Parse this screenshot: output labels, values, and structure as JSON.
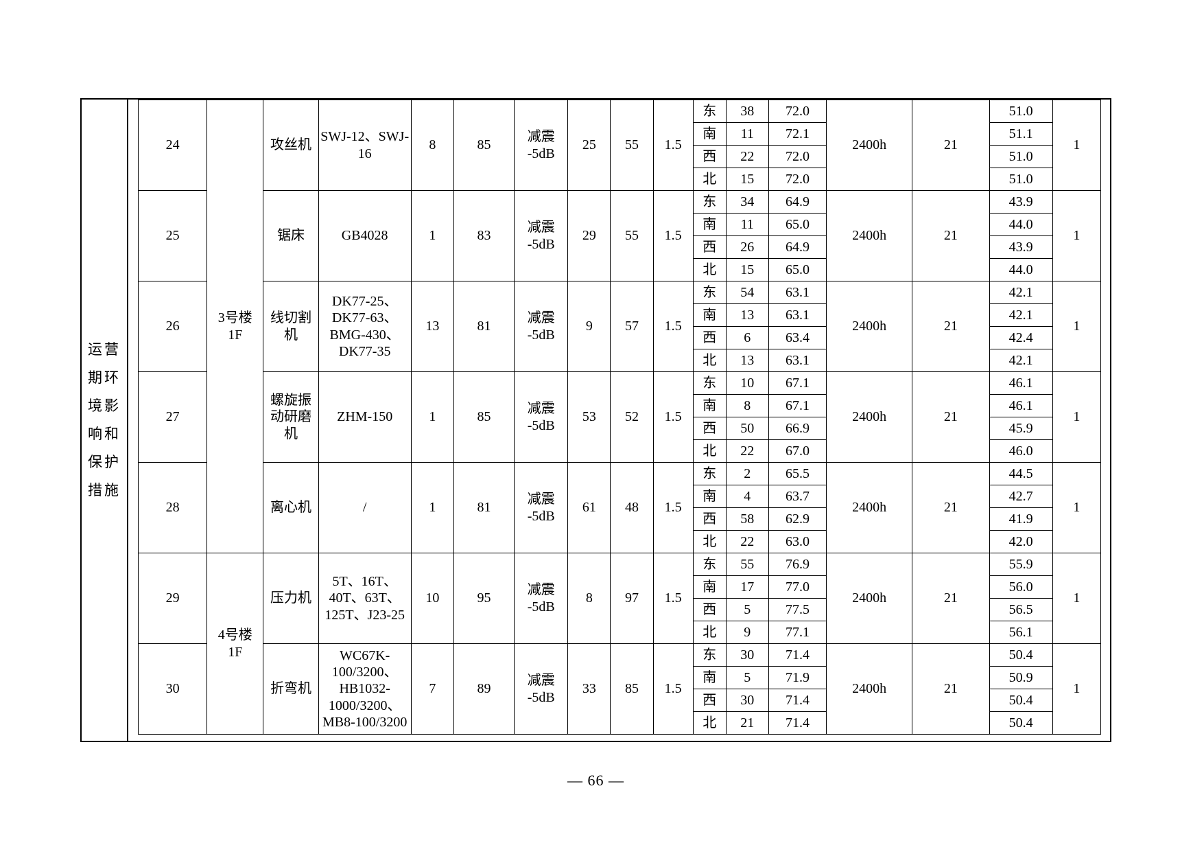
{
  "page": {
    "number_label": "— 66 —"
  },
  "sidebar": {
    "label": "运营期环境影响和保护措施",
    "text": "运营\n期环\n境影\n响和\n保护\n措施"
  },
  "table": {
    "buildings": [
      {
        "label": "3号楼\n1F",
        "row_start": 0,
        "row_count": 5
      },
      {
        "label": "4号楼\n1F",
        "row_start": 5,
        "row_count": 2
      }
    ],
    "rows": [
      {
        "no": "24",
        "machine": "攻丝机",
        "model": "SWJ-12、SWJ-16",
        "qty": "8",
        "source_db": "85",
        "measure": "减震\n-5dB",
        "v1": "25",
        "v2": "55",
        "v3": "1.5",
        "hours": "2400h",
        "standard": "21",
        "count": "1",
        "directions": [
          {
            "dir": "东",
            "dist": "38",
            "contrib": "72.0",
            "boundary": "51.0"
          },
          {
            "dir": "南",
            "dist": "11",
            "contrib": "72.1",
            "boundary": "51.1"
          },
          {
            "dir": "西",
            "dist": "22",
            "contrib": "72.0",
            "boundary": "51.0"
          },
          {
            "dir": "北",
            "dist": "15",
            "contrib": "72.0",
            "boundary": "51.0"
          }
        ]
      },
      {
        "no": "25",
        "machine": "锯床",
        "model": "GB4028",
        "qty": "1",
        "source_db": "83",
        "measure": "减震\n-5dB",
        "v1": "29",
        "v2": "55",
        "v3": "1.5",
        "hours": "2400h",
        "standard": "21",
        "count": "1",
        "directions": [
          {
            "dir": "东",
            "dist": "34",
            "contrib": "64.9",
            "boundary": "43.9"
          },
          {
            "dir": "南",
            "dist": "11",
            "contrib": "65.0",
            "boundary": "44.0"
          },
          {
            "dir": "西",
            "dist": "26",
            "contrib": "64.9",
            "boundary": "43.9"
          },
          {
            "dir": "北",
            "dist": "15",
            "contrib": "65.0",
            "boundary": "44.0"
          }
        ]
      },
      {
        "no": "26",
        "machine": "线切割机",
        "model": "DK77-25、DK77-63、BMG-430、DK77-35",
        "qty": "13",
        "source_db": "81",
        "measure": "减震\n-5dB",
        "v1": "9",
        "v2": "57",
        "v3": "1.5",
        "hours": "2400h",
        "standard": "21",
        "count": "1",
        "directions": [
          {
            "dir": "东",
            "dist": "54",
            "contrib": "63.1",
            "boundary": "42.1"
          },
          {
            "dir": "南",
            "dist": "13",
            "contrib": "63.1",
            "boundary": "42.1"
          },
          {
            "dir": "西",
            "dist": "6",
            "contrib": "63.4",
            "boundary": "42.4"
          },
          {
            "dir": "北",
            "dist": "13",
            "contrib": "63.1",
            "boundary": "42.1"
          }
        ]
      },
      {
        "no": "27",
        "machine": "螺旋振动研磨机",
        "model": "ZHM-150",
        "qty": "1",
        "source_db": "85",
        "measure": "减震\n-5dB",
        "v1": "53",
        "v2": "52",
        "v3": "1.5",
        "hours": "2400h",
        "standard": "21",
        "count": "1",
        "directions": [
          {
            "dir": "东",
            "dist": "10",
            "contrib": "67.1",
            "boundary": "46.1"
          },
          {
            "dir": "南",
            "dist": "8",
            "contrib": "67.1",
            "boundary": "46.1"
          },
          {
            "dir": "西",
            "dist": "50",
            "contrib": "66.9",
            "boundary": "45.9"
          },
          {
            "dir": "北",
            "dist": "22",
            "contrib": "67.0",
            "boundary": "46.0"
          }
        ]
      },
      {
        "no": "28",
        "machine": "离心机",
        "model": "/",
        "qty": "1",
        "source_db": "81",
        "measure": "减震\n-5dB",
        "v1": "61",
        "v2": "48",
        "v3": "1.5",
        "hours": "2400h",
        "standard": "21",
        "count": "1",
        "directions": [
          {
            "dir": "东",
            "dist": "2",
            "contrib": "65.5",
            "boundary": "44.5"
          },
          {
            "dir": "南",
            "dist": "4",
            "contrib": "63.7",
            "boundary": "42.7"
          },
          {
            "dir": "西",
            "dist": "58",
            "contrib": "62.9",
            "boundary": "41.9"
          },
          {
            "dir": "北",
            "dist": "22",
            "contrib": "63.0",
            "boundary": "42.0"
          }
        ]
      },
      {
        "no": "29",
        "machine": "压力机",
        "model": "5T、16T、40T、63T、 125T、J23-25",
        "qty": "10",
        "source_db": "95",
        "measure": "减震\n-5dB",
        "v1": "8",
        "v2": "97",
        "v3": "1.5",
        "hours": "2400h",
        "standard": "21",
        "count": "1",
        "directions": [
          {
            "dir": "东",
            "dist": "55",
            "contrib": "76.9",
            "boundary": "55.9"
          },
          {
            "dir": "南",
            "dist": "17",
            "contrib": "77.0",
            "boundary": "56.0"
          },
          {
            "dir": "西",
            "dist": "5",
            "contrib": "77.5",
            "boundary": "56.5"
          },
          {
            "dir": "北",
            "dist": "9",
            "contrib": "77.1",
            "boundary": "56.1"
          }
        ]
      },
      {
        "no": "30",
        "machine": "折弯机",
        "model": "WC67K-100/3200、HB1032-1000/3200、MB8-100/3200",
        "qty": "7",
        "source_db": "89",
        "measure": "减震\n-5dB",
        "v1": "33",
        "v2": "85",
        "v3": "1.5",
        "hours": "2400h",
        "standard": "21",
        "count": "1",
        "directions": [
          {
            "dir": "东",
            "dist": "30",
            "contrib": "71.4",
            "boundary": "50.4"
          },
          {
            "dir": "南",
            "dist": "5",
            "contrib": "71.9",
            "boundary": "50.9"
          },
          {
            "dir": "西",
            "dist": "30",
            "contrib": "71.4",
            "boundary": "50.4"
          },
          {
            "dir": "北",
            "dist": "21",
            "contrib": "71.4",
            "boundary": "50.4"
          }
        ]
      }
    ]
  }
}
